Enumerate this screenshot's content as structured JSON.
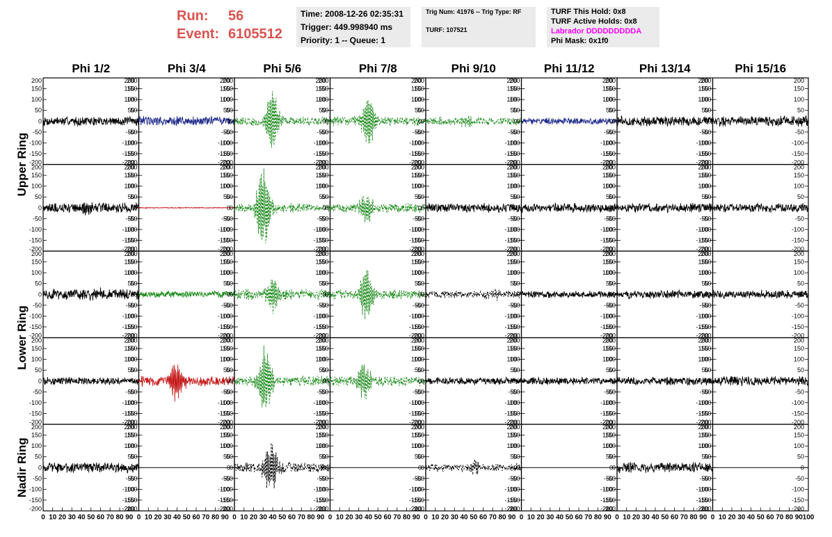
{
  "header": {
    "run_label": "Run:",
    "run_value": "56",
    "event_label": "Event:",
    "event_value": "6105512"
  },
  "info1": {
    "time": "Time: 2008-12-26 02:35:31",
    "trigger": "Trigger: 449.998940 ms",
    "priority": "Priority: 1 -- Queue: 1"
  },
  "info2": {
    "trig": "Trig Num: 41976 -- Trig Type: RF",
    "turf": "TURF: 107521"
  },
  "info3": {
    "hold": "TURF This Hold: 0x8",
    "active": "TURF Active Holds: 0x8",
    "labrador": "Labrador DDDDDDDDDA",
    "mask": "Phi Mask: 0x1f0"
  },
  "colors": {
    "black": "#000000",
    "blue": "#1f2a8a",
    "green": "#1a8a1a",
    "red": "#c41818",
    "header_red": "#d9534f"
  },
  "chart_data": {
    "type": "line",
    "columns": [
      "Phi 1/2",
      "Phi 3/4",
      "Phi 5/6",
      "Phi 7/8",
      "Phi 9/10",
      "Phi 11/12",
      "Phi 13/14",
      "Phi 15/16"
    ],
    "ring_labels": [
      "Upper Ring",
      "Lower Ring",
      "Nadir Ring"
    ],
    "ylim": [
      -200,
      200
    ],
    "xlim": [
      0,
      100
    ],
    "yticks": [
      "200",
      "150",
      "100",
      "50",
      "0",
      "-50",
      "-100",
      "-150",
      "-200"
    ],
    "xticks": [
      "0",
      "10",
      "20",
      "30",
      "40",
      "50",
      "60",
      "70",
      "80",
      "90",
      "100"
    ],
    "row_ring": [
      0,
      0,
      1,
      1,
      2
    ],
    "panels": [
      [
        {
          "color": "black",
          "style": "solid",
          "amp": 20,
          "burst": 0,
          "center": 0,
          "empty": false
        },
        {
          "color": "blue",
          "style": "solid",
          "amp": 22,
          "burst": 0,
          "center": 0,
          "empty": false
        },
        {
          "color": "green",
          "style": "dashed",
          "amp": 20,
          "burst": 140,
          "center": 40,
          "empty": false
        },
        {
          "color": "green",
          "style": "dashed",
          "amp": 20,
          "burst": 115,
          "center": 40,
          "empty": false
        },
        {
          "color": "green",
          "style": "dashed",
          "amp": 18,
          "burst": 25,
          "center": 45,
          "empty": false
        },
        {
          "color": "blue",
          "style": "solid",
          "amp": 14,
          "burst": 0,
          "center": 0,
          "empty": false
        },
        {
          "color": "black",
          "style": "solid",
          "amp": 22,
          "burst": 0,
          "center": 0,
          "empty": false
        },
        {
          "color": "black",
          "style": "solid",
          "amp": 22,
          "burst": 0,
          "center": 0,
          "empty": false
        }
      ],
      [
        {
          "color": "black",
          "style": "solid",
          "amp": 22,
          "burst": 30,
          "center": 45,
          "empty": false
        },
        {
          "color": "red",
          "style": "solid",
          "amp": 2,
          "burst": 0,
          "center": 0,
          "empty": false
        },
        {
          "color": "green",
          "style": "dashed",
          "amp": 20,
          "burst": 190,
          "center": 30,
          "empty": false
        },
        {
          "color": "green",
          "style": "dashed",
          "amp": 20,
          "burst": 70,
          "center": 38,
          "empty": false
        },
        {
          "color": "black",
          "style": "solid",
          "amp": 20,
          "burst": 0,
          "center": 0,
          "empty": false
        },
        {
          "color": "black",
          "style": "solid",
          "amp": 20,
          "burst": 0,
          "center": 0,
          "empty": false
        },
        {
          "color": "black",
          "style": "solid",
          "amp": 20,
          "burst": 0,
          "center": 0,
          "empty": false
        },
        {
          "color": "black",
          "style": "solid",
          "amp": 20,
          "burst": 0,
          "center": 0,
          "empty": false
        }
      ],
      [
        {
          "color": "black",
          "style": "solid",
          "amp": 24,
          "burst": 15,
          "center": 55,
          "empty": false
        },
        {
          "color": "green",
          "style": "solid",
          "amp": 14,
          "burst": 0,
          "center": 0,
          "empty": false
        },
        {
          "color": "green",
          "style": "dashed",
          "amp": 22,
          "burst": 80,
          "center": 40,
          "empty": false
        },
        {
          "color": "green",
          "style": "dashed",
          "amp": 20,
          "burst": 130,
          "center": 38,
          "empty": false
        },
        {
          "color": "black",
          "style": "dashed",
          "amp": 16,
          "burst": 20,
          "center": 70,
          "empty": false
        },
        {
          "color": "black",
          "style": "solid",
          "amp": 16,
          "burst": 0,
          "center": 0,
          "empty": false
        },
        {
          "color": "black",
          "style": "solid",
          "amp": 18,
          "burst": 0,
          "center": 0,
          "empty": false
        },
        {
          "color": "black",
          "style": "solid",
          "amp": 18,
          "burst": 0,
          "center": 0,
          "empty": false
        }
      ],
      [
        {
          "color": "black",
          "style": "solid",
          "amp": 16,
          "burst": 0,
          "center": 0,
          "empty": false
        },
        {
          "color": "red",
          "style": "solid",
          "amp": 22,
          "burst": 90,
          "center": 40,
          "empty": false
        },
        {
          "color": "green",
          "style": "dashed",
          "amp": 22,
          "burst": 165,
          "center": 32,
          "empty": false
        },
        {
          "color": "green",
          "style": "dashed",
          "amp": 22,
          "burst": 95,
          "center": 35,
          "empty": false
        },
        {
          "color": "black",
          "style": "solid",
          "amp": 16,
          "burst": 0,
          "center": 0,
          "empty": false
        },
        {
          "color": "black",
          "style": "solid",
          "amp": 16,
          "burst": 0,
          "center": 0,
          "empty": false
        },
        {
          "color": "black",
          "style": "solid",
          "amp": 18,
          "burst": 0,
          "center": 0,
          "empty": false
        },
        {
          "color": "black",
          "style": "solid",
          "amp": 20,
          "burst": 0,
          "center": 0,
          "empty": false
        }
      ],
      [
        {
          "color": "black",
          "style": "solid",
          "amp": 22,
          "burst": 0,
          "center": 0,
          "empty": false
        },
        {
          "color": "black",
          "style": "solid",
          "amp": 0,
          "burst": 0,
          "center": 0,
          "empty": true
        },
        {
          "color": "black",
          "style": "dashed",
          "amp": 22,
          "burst": 110,
          "center": 38,
          "empty": false
        },
        {
          "color": "black",
          "style": "solid",
          "amp": 0,
          "burst": 0,
          "center": 0,
          "empty": true
        },
        {
          "color": "black",
          "style": "dashed",
          "amp": 16,
          "burst": 30,
          "center": 50,
          "empty": false
        },
        {
          "color": "black",
          "style": "solid",
          "amp": 0,
          "burst": 0,
          "center": 0,
          "empty": true
        },
        {
          "color": "black",
          "style": "solid",
          "amp": 22,
          "burst": 0,
          "center": 0,
          "empty": false
        },
        {
          "color": "black",
          "style": "solid",
          "amp": 0,
          "burst": 0,
          "center": 0,
          "empty": true
        }
      ]
    ]
  }
}
